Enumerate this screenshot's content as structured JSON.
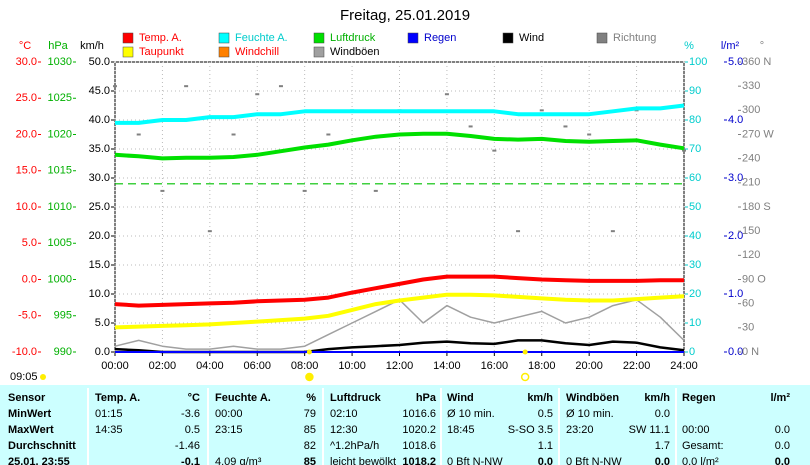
{
  "chart_data": {
    "type": "line",
    "title": "Freitag, 25.01.2019",
    "x": [
      0,
      1,
      2,
      3,
      4,
      5,
      6,
      7,
      8,
      9,
      10,
      11,
      12,
      13,
      14,
      15,
      16,
      17,
      18,
      19,
      20,
      21,
      22,
      23,
      24
    ],
    "xlim": [
      0,
      24
    ],
    "xticks": [
      {
        "value": 0,
        "label": "00:00"
      },
      {
        "value": 2,
        "label": "02:00"
      },
      {
        "value": 4,
        "label": "04:00"
      },
      {
        "value": 6,
        "label": "06:00"
      },
      {
        "value": 8,
        "label": "08:00"
      },
      {
        "value": 10,
        "label": "10:00"
      },
      {
        "value": 12,
        "label": "12:00"
      },
      {
        "value": 14,
        "label": "14:00"
      },
      {
        "value": 16,
        "label": "16:00"
      },
      {
        "value": 18,
        "label": "18:00"
      },
      {
        "value": 20,
        "label": "20:00"
      },
      {
        "value": 22,
        "label": "22:00"
      },
      {
        "value": 24,
        "label": "24:00"
      }
    ],
    "ylabel": "°C",
    "ylim": [
      -10,
      30
    ],
    "yticks": [
      {
        "value": 30,
        "label": "30.0"
      },
      {
        "value": 25,
        "label": "25.0"
      },
      {
        "value": 20,
        "label": "20.0"
      },
      {
        "value": 15,
        "label": "15.0"
      },
      {
        "value": 10,
        "label": "10.0"
      },
      {
        "value": 5,
        "label": "5.0"
      },
      {
        "value": 0,
        "label": "0.0"
      },
      {
        "value": -5,
        "label": "-5.0"
      },
      {
        "value": -10,
        "label": "-10.0"
      }
    ],
    "y2label": "hPa",
    "y2lim": [
      990,
      1030
    ],
    "y2ticks": [
      1030,
      1025,
      1020,
      1015,
      1010,
      1005,
      1000,
      995,
      990
    ],
    "y3label": "km/h",
    "y3lim": [
      0,
      50
    ],
    "y3ticks": [
      {
        "value": 50,
        "label": "50.0"
      },
      {
        "value": 45,
        "label": "45.0"
      },
      {
        "value": 40,
        "label": "40.0"
      },
      {
        "value": 35,
        "label": "35.0"
      },
      {
        "value": 30,
        "label": "30.0"
      },
      {
        "value": 25,
        "label": "25.0"
      },
      {
        "value": 20,
        "label": "20.0"
      },
      {
        "value": 15,
        "label": "15.0"
      },
      {
        "value": 10,
        "label": "10.0"
      },
      {
        "value": 5,
        "label": "5.0"
      },
      {
        "value": 0,
        "label": "0.0"
      }
    ],
    "y4label": "%",
    "y4lim": [
      0,
      100
    ],
    "y4ticks": [
      100,
      90,
      80,
      70,
      60,
      50,
      40,
      30,
      20,
      10,
      0
    ],
    "y5label": "l/m²",
    "y5lim": [
      0,
      5
    ],
    "y5ticks": [
      {
        "value": 5,
        "label": "5.0"
      },
      {
        "value": 4,
        "label": "4.0"
      },
      {
        "value": 3,
        "label": "3.0"
      },
      {
        "value": 2,
        "label": "2.0"
      },
      {
        "value": 1,
        "label": "1.0"
      },
      {
        "value": 0,
        "label": "0.0"
      }
    ],
    "y6label": "°",
    "y6lim": [
      0,
      360
    ],
    "y6ticks": [
      {
        "value": 360,
        "label": "360 N"
      },
      330,
      300,
      {
        "value": 270,
        "label": "270 W"
      },
      240,
      210,
      {
        "value": 180,
        "label": "180 S"
      },
      150,
      120,
      {
        "value": 90,
        "label": "90 O"
      },
      60,
      30,
      {
        "value": 0,
        "label": "0 N"
      }
    ],
    "axis_colors": {
      "y": "#ff0000",
      "y2": "#00b000",
      "y3": "#000000",
      "y4": "#00cccc",
      "y5": "#0000cc",
      "y6": "#808080"
    },
    "grid": true,
    "reference_lines": [
      {
        "axis": "y2",
        "value": 1013.2,
        "color": "#00c000"
      }
    ],
    "sun": {
      "sunrise": 8.2,
      "sunset": 17.3,
      "day_length": "09:05",
      "color": "#ffee00"
    },
    "series": [
      {
        "name": "Temp. A.",
        "color": "#ff0000",
        "label_color": "#ff0000",
        "axis": "y",
        "width": 4,
        "values": [
          -3.4,
          -3.6,
          -3.5,
          -3.4,
          -3.3,
          -3.2,
          -3.0,
          -2.9,
          -2.8,
          -2.5,
          -1.8,
          -1.2,
          -0.6,
          0.0,
          0.4,
          0.4,
          0.4,
          0.2,
          0.0,
          -0.1,
          -0.2,
          -0.2,
          -0.2,
          -0.1,
          -0.1
        ]
      },
      {
        "name": "Feuchte A.",
        "color": "#00ffff",
        "label_color": "#00cccc",
        "axis": "y4",
        "width": 4,
        "values": [
          79,
          79,
          80,
          80,
          81,
          81,
          82,
          82,
          83,
          83,
          83,
          83,
          83,
          83,
          83,
          83,
          83,
          82,
          82,
          82,
          82,
          83,
          84,
          84,
          85
        ]
      },
      {
        "name": "Luftdruck",
        "color": "#00e000",
        "label_color": "#00b000",
        "axis": "y2",
        "width": 4,
        "values": [
          1017.2,
          1017.0,
          1016.7,
          1016.8,
          1016.8,
          1016.9,
          1017.2,
          1017.7,
          1018.2,
          1018.6,
          1019.2,
          1019.7,
          1020.0,
          1020.1,
          1020.1,
          1019.8,
          1019.4,
          1019.3,
          1019.4,
          1019.1,
          1019.0,
          1019.1,
          1019.2,
          1018.6,
          1018.1
        ]
      },
      {
        "name": "Regen",
        "color": "#0000ff",
        "label_color": "#0000cc",
        "axis": "y5",
        "width": 2,
        "values": [
          0,
          0,
          0,
          0,
          0,
          0,
          0,
          0,
          0,
          0,
          0,
          0,
          0,
          0,
          0,
          0,
          0,
          0,
          0,
          0,
          0,
          0,
          0,
          0,
          0
        ]
      },
      {
        "name": "Wind",
        "color": "#000000",
        "label_color": "#000000",
        "axis": "y3",
        "width": 2.5,
        "values": [
          0.5,
          0.3,
          0,
          0,
          0,
          0,
          0,
          0,
          0,
          0.5,
          0.8,
          1.0,
          1.2,
          1.6,
          1.8,
          1.5,
          1.4,
          2.0,
          2.0,
          1.5,
          1.2,
          1.8,
          1.6,
          0.8,
          0.3
        ]
      },
      {
        "name": "Richtung",
        "color": "#808080",
        "label_color": "#808080",
        "axis": "y6",
        "mark": "points",
        "values": [
          330,
          270,
          200,
          330,
          150,
          270,
          320,
          330,
          200,
          270,
          300,
          200,
          300,
          270,
          320,
          280,
          250,
          150,
          300,
          280,
          270,
          150,
          300,
          90,
          250
        ]
      },
      {
        "name": "Taupunkt",
        "color": "#ffff00",
        "label_color": "#ff0000",
        "axis": "y",
        "width": 4,
        "values": [
          -6.6,
          -6.5,
          -6.4,
          -6.3,
          -6.2,
          -6.0,
          -5.8,
          -5.6,
          -5.4,
          -5.0,
          -4.2,
          -3.4,
          -2.9,
          -2.5,
          -2.1,
          -2.1,
          -2.2,
          -2.4,
          -2.6,
          -2.8,
          -2.9,
          -2.9,
          -2.7,
          -2.5,
          -2.3
        ]
      },
      {
        "name": "Windchill",
        "color": "#ff8000",
        "label_color": "#ff0000",
        "axis": "y",
        "width": 3,
        "values": [
          null,
          null,
          null,
          null,
          null,
          null,
          null,
          null,
          null,
          null,
          null,
          null,
          null,
          null,
          null,
          null,
          null,
          null,
          null,
          null,
          null,
          null,
          null,
          null,
          null
        ]
      },
      {
        "name": "Windböen",
        "color": "#a0a0a0",
        "label_color": "#000000",
        "axis": "y3",
        "width": 1.5,
        "values": [
          1,
          2,
          1,
          0.5,
          0.5,
          1,
          0.5,
          0.5,
          1,
          3,
          5,
          7,
          9,
          5,
          8,
          6,
          5,
          6,
          7,
          5,
          6,
          8,
          9,
          6,
          2
        ]
      }
    ]
  },
  "table": {
    "header": [
      "Sensor",
      "Temp. A.",
      "°C",
      "Feuchte A.",
      "%",
      "Luftdruck",
      "hPa",
      "Wind",
      "km/h",
      "Windböen",
      "km/h",
      "Regen",
      "l/m²"
    ],
    "rows": [
      [
        "MinWert",
        "01:15",
        "-3.6",
        "00:00",
        "79",
        "02:10",
        "1016.6",
        "Ø 10 min.",
        "0.5",
        "Ø 10 min.",
        "0.0",
        null,
        null
      ],
      [
        "MaxWert",
        "14:35",
        "0.5",
        "23:15",
        "85",
        "12:30",
        "1020.2",
        "18:45",
        "S-SO 3.5",
        "23:20",
        "SW 11.1",
        "00:00",
        "0.0"
      ],
      [
        "Durchschnitt",
        null,
        "-1.46",
        null,
        "82",
        "^1.2hPa/h",
        "1018.6",
        null,
        "1.1",
        null,
        "1.7",
        "Gesamt:",
        "0.0"
      ],
      [
        "25.01. 23:55",
        null,
        "-0.1",
        "4.09 g/m³",
        "85",
        "leicht bewölkt",
        "1018.2",
        "0 Bft N-NW",
        "0.0",
        "0 Bft N-NW",
        "0.0",
        "0.0 l/m²",
        "0.0"
      ]
    ]
  }
}
